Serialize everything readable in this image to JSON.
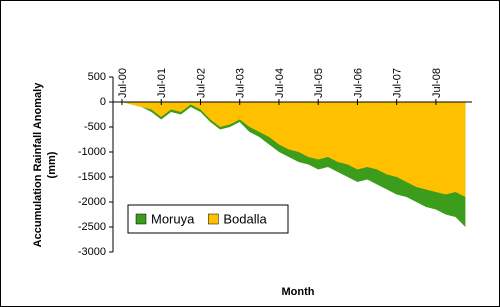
{
  "chart_data": {
    "type": "area",
    "y_label": [
      "Accumulation Rainfall Anomaly",
      "(mm)"
    ],
    "x_label": "Month",
    "categories": [
      "Jul-00",
      null,
      null,
      null,
      "Jul-01",
      null,
      null,
      null,
      "Jul-02",
      null,
      null,
      null,
      "Jul-03",
      null,
      null,
      null,
      "Jul-04",
      null,
      null,
      null,
      "Jul-05",
      null,
      null,
      null,
      "Jul-06",
      null,
      null,
      null,
      "Jul-07",
      null,
      null,
      null,
      "Jul-08",
      null,
      null,
      null
    ],
    "series": [
      {
        "name": "Moruya",
        "color": "#3c9c1c",
        "values": [
          0,
          -50,
          -100,
          -200,
          -350,
          -200,
          -250,
          -100,
          -200,
          -400,
          -550,
          -500,
          -400,
          -600,
          -700,
          -850,
          -1000,
          -1100,
          -1200,
          -1250,
          -1350,
          -1300,
          -1400,
          -1500,
          -1600,
          -1550,
          -1650,
          -1750,
          -1850,
          -1900,
          -2000,
          -2100,
          -2150,
          -2250,
          -2300,
          -2500
        ]
      },
      {
        "name": "Bodalla",
        "color": "#ffc000",
        "values": [
          0,
          -50,
          -100,
          -150,
          -300,
          -150,
          -200,
          -50,
          -150,
          -350,
          -500,
          -450,
          -350,
          -500,
          -600,
          -700,
          -850,
          -950,
          -1000,
          -1100,
          -1150,
          -1100,
          -1200,
          -1250,
          -1350,
          -1300,
          -1350,
          -1450,
          -1500,
          -1600,
          -1700,
          -1750,
          -1800,
          -1850,
          -1800,
          -1900
        ]
      }
    ],
    "ylim": [
      -3000,
      500
    ],
    "yticks": [
      500,
      0,
      -500,
      -1000,
      -1500,
      -2000,
      -2500,
      -3000
    ],
    "legend": "lower left",
    "grid": false
  }
}
